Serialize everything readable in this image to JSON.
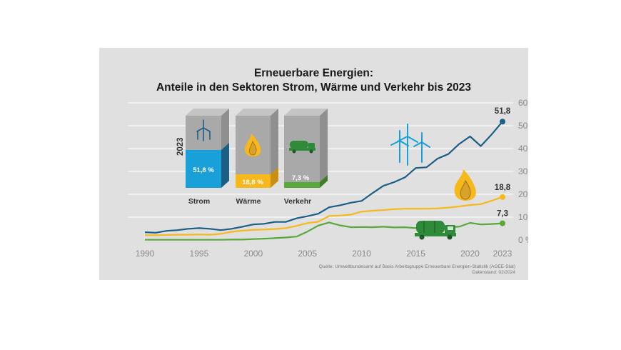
{
  "title_line1": "Erneuerbare Energien:",
  "title_line2": "Anteile in den Sektoren Strom, Wärme und Verkehr bis 2023",
  "source_line1": "Quelle: Umweltbundesamt auf Basis Arbeitsgruppe Erneuerbare Energien-Statistik (AGEE-Stat)",
  "source_line2": "Datenstand: 02/2024",
  "colors": {
    "strom": "#1b5e86",
    "strom_block": "#1aa0d8",
    "waerme": "#f6b81b",
    "verkehr": "#58a83a",
    "grid": "#ffffff",
    "block_gray": "#a9a9a9"
  },
  "inset": {
    "year": "2023",
    "bars": [
      {
        "label": "Strom",
        "value_label": "51,8 %",
        "value": 51.8,
        "icon": "wind-turbine-icon"
      },
      {
        "label": "Wärme",
        "value_label": "18,8 %",
        "value": 18.8,
        "icon": "flame-icon"
      },
      {
        "label": "Verkehr",
        "value_label": "7,3 %",
        "value": 7.3,
        "icon": "tanker-truck-icon"
      }
    ]
  },
  "chart_data": {
    "type": "line",
    "title": "Erneuerbare Energien: Anteile in den Sektoren Strom, Wärme und Verkehr bis 2023",
    "x": [
      1990,
      1991,
      1992,
      1993,
      1994,
      1995,
      1996,
      1997,
      1998,
      1999,
      2000,
      2001,
      2002,
      2003,
      2004,
      2005,
      2006,
      2007,
      2008,
      2009,
      2010,
      2011,
      2012,
      2013,
      2014,
      2015,
      2016,
      2017,
      2018,
      2019,
      2020,
      2021,
      2022,
      2023
    ],
    "xticks": [
      1990,
      1995,
      2000,
      2005,
      2010,
      2015,
      2020,
      2023
    ],
    "xlim": [
      1990,
      2023
    ],
    "ylim": [
      0,
      60
    ],
    "yticks": [
      0,
      10,
      20,
      30,
      40,
      50,
      60
    ],
    "ytick_labels": [
      "0 %",
      "10 %",
      "20 %",
      "30 %",
      "40 %",
      "50 %",
      "60 %"
    ],
    "grid": true,
    "series": [
      {
        "key": "strom",
        "end_label": "51,8",
        "values": [
          3.4,
          3.2,
          4.0,
          4.3,
          4.9,
          5.2,
          4.9,
          4.3,
          4.9,
          5.8,
          6.8,
          7.1,
          7.9,
          7.9,
          9.5,
          10.4,
          11.5,
          14.3,
          15.2,
          16.3,
          17.1,
          20.5,
          23.7,
          25.3,
          27.4,
          31.5,
          31.8,
          35.6,
          37.6,
          42.0,
          45.3,
          41.1,
          46.2,
          51.8
        ]
      },
      {
        "key": "waerme",
        "end_label": "18,8",
        "values": [
          2.1,
          2.1,
          2.2,
          2.3,
          2.3,
          2.4,
          2.3,
          2.7,
          3.6,
          4.1,
          4.4,
          4.6,
          4.8,
          5.2,
          6.2,
          7.4,
          8.0,
          10.5,
          10.7,
          11.1,
          12.4,
          12.8,
          13.1,
          13.5,
          13.7,
          13.7,
          13.7,
          13.8,
          14.2,
          14.7,
          15.3,
          15.7,
          17.2,
          18.8
        ]
      },
      {
        "key": "verkehr",
        "end_label": "7,3",
        "values": [
          0.1,
          0.1,
          0.1,
          0.1,
          0.1,
          0.1,
          0.1,
          0.1,
          0.2,
          0.2,
          0.4,
          0.6,
          0.8,
          1.1,
          1.5,
          3.7,
          6.3,
          7.7,
          6.4,
          5.6,
          5.7,
          5.6,
          5.8,
          5.5,
          5.6,
          5.2,
          5.3,
          5.4,
          5.7,
          5.8,
          7.5,
          6.8,
          7.0,
          7.3
        ]
      }
    ]
  }
}
